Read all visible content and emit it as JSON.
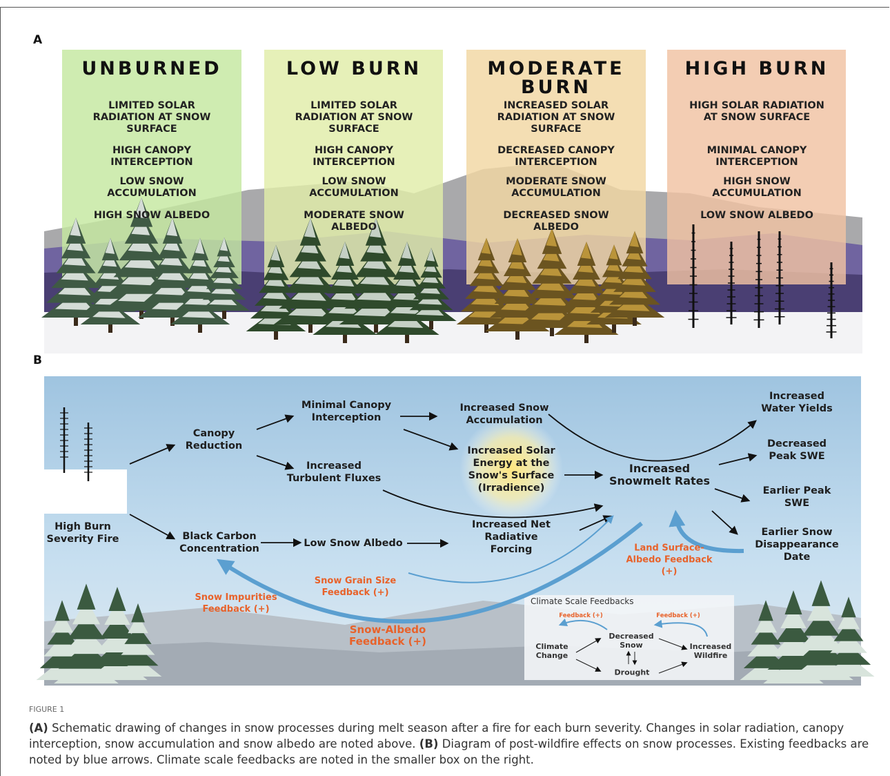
{
  "panel_a": {
    "label": "A",
    "columns": [
      {
        "title": "UNBURNED",
        "items": [
          "LIMITED SOLAR RADIATION AT SNOW SURFACE",
          "HIGH CANOPY INTERCEPTION",
          "LOW SNOW ACCUMULATION",
          "HIGH SNOW ALBEDO"
        ]
      },
      {
        "title": "LOW BURN",
        "items": [
          "LIMITED SOLAR RADIATION AT SNOW SURFACE",
          "HIGH CANOPY INTERCEPTION",
          "LOW SNOW ACCUMULATION",
          "MODERATE SNOW ALBEDO"
        ]
      },
      {
        "title": "MODERATE BURN",
        "items": [
          "INCREASED SOLAR RADIATION AT SNOW SURFACE",
          "DECREASED CANOPY INTERCEPTION",
          "MODERATE SNOW ACCUMULATION",
          "DECREASED SNOW ALBEDO"
        ]
      },
      {
        "title": "HIGH BURN",
        "items": [
          "HIGH SOLAR RADIATION AT SNOW SURFACE",
          "MINIMAL CANOPY INTERCEPTION",
          "HIGH SNOW ACCUMULATION",
          "LOW SNOW ALBEDO"
        ]
      }
    ]
  },
  "panel_b": {
    "label": "B",
    "nodes": [
      "High Burn Severity Fire",
      "Canopy Reduction",
      "Black Carbon Concentration",
      "Minimal Canopy Interception",
      "Increased Turbulent Fluxes",
      "Low Snow Albedo",
      "Increased Snow Accumulation",
      "Increased Solar Energy at the Snow's Surface (Irradience)",
      "Increased Net Radiative Forcing",
      "Increased Snowmelt Rates",
      "Increased Water Yields",
      "Decreased Peak SWE",
      "Earlier Peak SWE",
      "Earlier Snow Disappearance Date"
    ],
    "feedbacks": [
      "Snow Impurities Feedback (+)",
      "Snow Grain Size Feedback (+)",
      "Snow-Albedo Feedback (+)",
      "Land Surface-Albedo Feedback (+)"
    ],
    "inset": {
      "title": "Climate Scale Feedbacks",
      "nodes": [
        "Climate Change",
        "Decreased Snow",
        "Drought",
        "Increased Wildfire"
      ],
      "feedbacks": [
        "Feedback (+)",
        "Feedback (+)"
      ]
    }
  },
  "caption": {
    "figure_label": "FIGURE 1",
    "a_label": "(A)",
    "a_text": "Schematic drawing of changes in snow processes during melt season after a fire for each burn severity. Changes in solar radiation, canopy interception, snow accumulation and snow albedo are noted above.",
    "b_label": "(B)",
    "b_text": "Diagram of post-wildfire effects on snow processes. Existing feedbacks are noted by blue arrows. Climate scale feedbacks are noted in the smaller box on the right."
  }
}
